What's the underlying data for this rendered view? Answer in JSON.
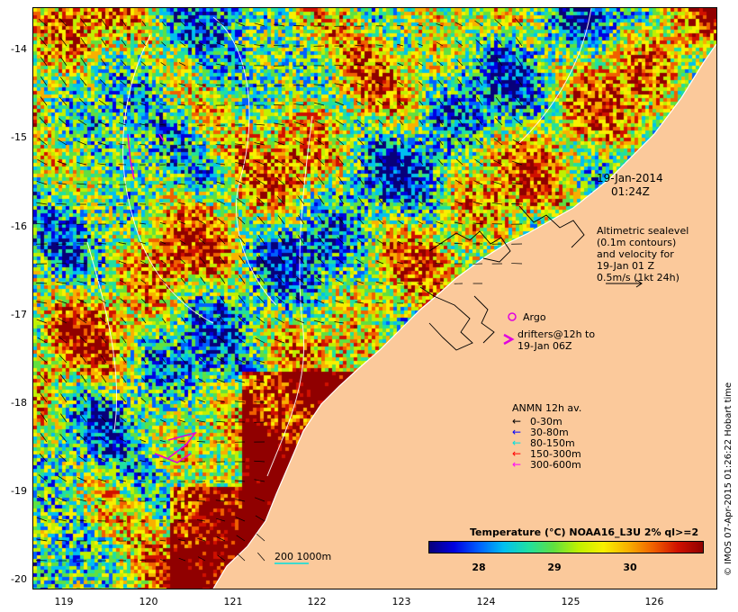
{
  "map": {
    "lon_range": [
      118.6,
      126.7
    ],
    "lat_range": [
      -20.1,
      -13.6
    ],
    "lon_ticks": [
      "119",
      "120",
      "121",
      "122",
      "123",
      "124",
      "125",
      "126"
    ],
    "lat_ticks": [
      "-14",
      "-15",
      "-16",
      "-17",
      "-18",
      "-19",
      "-20"
    ],
    "land_color": "#fbc99b"
  },
  "timestamp": {
    "date": "19-Jan-2014",
    "time": "01:24Z"
  },
  "altimetry_note": {
    "lines": [
      "Altimetric sealevel",
      "(0.1m contours)",
      "and velocity for",
      "19-Jan 01 Z",
      "0.5m/s (1kt 24h)"
    ]
  },
  "argo": {
    "label": "Argo",
    "color": "#e000e0"
  },
  "drifters": {
    "line1": "drifters@12h to",
    "line2": "19-Jan 06Z",
    "color": "#e000e0"
  },
  "anmn": {
    "title": "ANMN 12h av.",
    "items": [
      {
        "label": "0-30m",
        "color": "#000000"
      },
      {
        "label": "30-80m",
        "color": "#0000ff"
      },
      {
        "label": "80-150m",
        "color": "#00e0e0"
      },
      {
        "label": "150-300m",
        "color": "#ff0000"
      },
      {
        "label": "300-600m",
        "color": "#ff00ff"
      }
    ]
  },
  "scale_bar": {
    "label": "200  1000m"
  },
  "colorbar": {
    "title": "Temperature (°C) NOAA16_L3U 2% ql>=2",
    "tick_labels": [
      "28",
      "29",
      "30"
    ],
    "stops": [
      "#08007a",
      "#0000e0",
      "#0060ff",
      "#00c0f0",
      "#20e0a0",
      "#60e040",
      "#c0f000",
      "#f8f000",
      "#f8b000",
      "#f06000",
      "#d01000",
      "#900000"
    ]
  },
  "credit": "© IMOS 07-Apr-2015 01:26:22 Hobart time"
}
